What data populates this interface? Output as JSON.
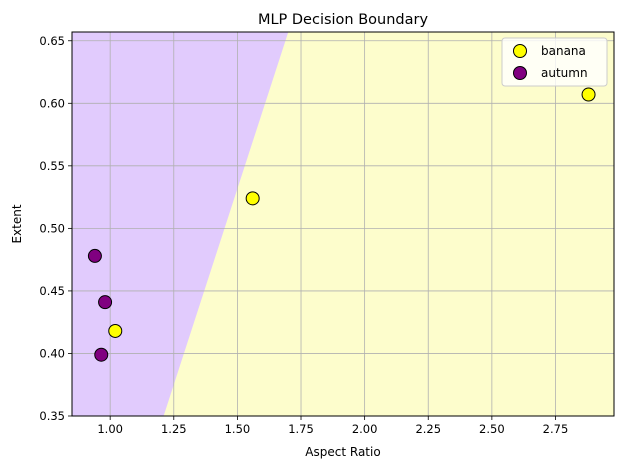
{
  "chart_data": {
    "type": "scatter",
    "title": "MLP Decision Boundary",
    "xlabel": "Aspect Ratio",
    "ylabel": "Extent",
    "xlim": [
      0.85,
      2.98
    ],
    "ylim": [
      0.35,
      0.657
    ],
    "xticks": [
      "1.00",
      "1.25",
      "1.50",
      "1.75",
      "2.00",
      "2.25",
      "2.50",
      "2.75"
    ],
    "xtick_values": [
      1.0,
      1.25,
      1.5,
      1.75,
      2.0,
      2.25,
      2.5,
      2.75
    ],
    "yticks": [
      "0.35",
      "0.40",
      "0.45",
      "0.50",
      "0.55",
      "0.60",
      "0.65"
    ],
    "ytick_values": [
      0.35,
      0.4,
      0.45,
      0.5,
      0.55,
      0.6,
      0.65
    ],
    "grid": true,
    "legend_position": "top-right",
    "decision_boundary": {
      "points": [
        [
          1.21,
          0.35
        ],
        [
          1.7,
          0.657
        ]
      ],
      "left_region": {
        "class": "autumn",
        "color": "#e1cbfd"
      },
      "right_region": {
        "class": "banana",
        "color": "#fdfdcc"
      }
    },
    "series": [
      {
        "name": "banana",
        "color": "#ffff00",
        "points": [
          [
            1.02,
            0.418
          ],
          [
            1.56,
            0.524
          ],
          [
            2.88,
            0.607
          ]
        ]
      },
      {
        "name": "autumn",
        "color": "#800080",
        "points": [
          [
            0.94,
            0.478
          ],
          [
            0.98,
            0.441
          ],
          [
            0.965,
            0.399
          ]
        ]
      }
    ]
  }
}
